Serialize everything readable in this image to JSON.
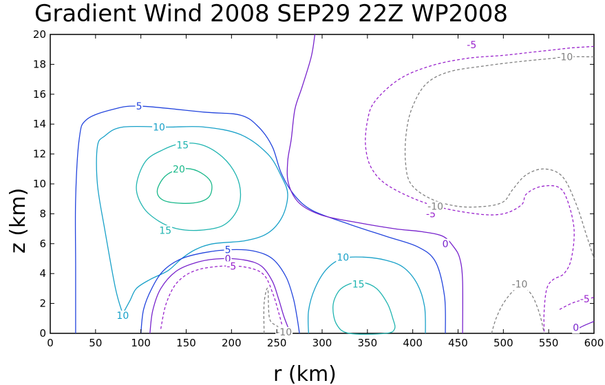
{
  "chart_data": {
    "type": "contour",
    "title": "Gradient Wind 2008 SEP29 22Z  WP2008",
    "xlabel": "r (km)",
    "ylabel": "z (km)",
    "xlim": [
      0,
      600
    ],
    "ylim": [
      0,
      20
    ],
    "xticks": [
      "0",
      "50",
      "100",
      "150",
      "200",
      "250",
      "300",
      "350",
      "400",
      "450",
      "500",
      "550",
      "600"
    ],
    "yticks": [
      "0",
      "2",
      "4",
      "6",
      "8",
      "10",
      "12",
      "14",
      "16",
      "18",
      "20"
    ],
    "colors": {
      "c20": "#19b88a",
      "c15": "#1fb4b0",
      "c10": "#17a0c8",
      "c5": "#2244dd",
      "c0": "#7722cc",
      "cm5": "#9922cc",
      "cm10": "#808080"
    },
    "contours": [
      {
        "level": "20",
        "color": "c20",
        "dash": false,
        "closed": true,
        "points": [
          [
            118,
            9.5
          ],
          [
            125,
            10.4
          ],
          [
            138,
            10.9
          ],
          [
            155,
            11.0
          ],
          [
            170,
            10.6
          ],
          [
            178,
            10.0
          ],
          [
            176,
            9.2
          ],
          [
            165,
            8.8
          ],
          [
            145,
            8.7
          ],
          [
            125,
            8.9
          ]
        ]
      },
      {
        "level": "15",
        "color": "c15",
        "dash": false,
        "closed": true,
        "points": [
          [
            95,
            9.8
          ],
          [
            105,
            11.5
          ],
          [
            125,
            12.3
          ],
          [
            145,
            12.7
          ],
          [
            168,
            12.6
          ],
          [
            190,
            11.8
          ],
          [
            205,
            10.6
          ],
          [
            210,
            9.3
          ],
          [
            205,
            8.1
          ],
          [
            190,
            7.2
          ],
          [
            165,
            6.9
          ],
          [
            140,
            7.0
          ],
          [
            120,
            7.5
          ],
          [
            103,
            8.4
          ]
        ]
      },
      {
        "level": "15",
        "color": "c15",
        "dash": false,
        "closed": true,
        "points": [
          [
            312,
            1.8
          ],
          [
            318,
            2.8
          ],
          [
            330,
            3.3
          ],
          [
            345,
            3.4
          ],
          [
            360,
            3.0
          ],
          [
            372,
            2.0
          ],
          [
            378,
            1.0
          ],
          [
            380,
            0.3
          ],
          [
            370,
            0.0
          ],
          [
            330,
            0.0
          ],
          [
            316,
            0.6
          ]
        ]
      },
      {
        "level": "10",
        "color": "c10",
        "dash": false,
        "closed": false,
        "points": [
          [
            80,
            1.3
          ],
          [
            72,
            3.0
          ],
          [
            60,
            7.0
          ],
          [
            52,
            10.0
          ],
          [
            52,
            12.5
          ],
          [
            60,
            13.2
          ],
          [
            80,
            13.8
          ],
          [
            130,
            13.8
          ],
          [
            170,
            13.8
          ],
          [
            210,
            13.3
          ],
          [
            240,
            12.0
          ],
          [
            255,
            10.5
          ],
          [
            262,
            9.3
          ],
          [
            256,
            7.8
          ],
          [
            240,
            6.7
          ],
          [
            215,
            6.2
          ],
          [
            180,
            6.0
          ],
          [
            160,
            5.6
          ],
          [
            145,
            5.0
          ],
          [
            130,
            4.2
          ],
          [
            110,
            3.6
          ],
          [
            95,
            3.0
          ],
          [
            88,
            2.2
          ],
          [
            80,
            1.3
          ]
        ]
      },
      {
        "level": "10",
        "color": "c10",
        "dash": false,
        "closed": false,
        "points": [
          [
            285,
            0.0
          ],
          [
            285,
            1.5
          ],
          [
            292,
            3.0
          ],
          [
            305,
            4.3
          ],
          [
            322,
            5.0
          ],
          [
            345,
            5.1
          ],
          [
            370,
            4.9
          ],
          [
            390,
            4.4
          ],
          [
            405,
            3.3
          ],
          [
            413,
            1.8
          ],
          [
            414,
            0.0
          ]
        ]
      },
      {
        "level": "5",
        "color": "c5",
        "dash": false,
        "closed": false,
        "points": [
          [
            28,
            0.0
          ],
          [
            28,
            4.5
          ],
          [
            28,
            9.0
          ],
          [
            32,
            13.0
          ],
          [
            40,
            14.3
          ],
          [
            70,
            15.0
          ],
          [
            100,
            15.2
          ],
          [
            170,
            14.8
          ],
          [
            210,
            14.6
          ],
          [
            230,
            13.8
          ],
          [
            245,
            12.5
          ],
          [
            255,
            10.7
          ],
          [
            270,
            9.2
          ],
          [
            290,
            8.2
          ],
          [
            330,
            7.3
          ],
          [
            370,
            6.5
          ],
          [
            405,
            5.8
          ],
          [
            425,
            4.8
          ],
          [
            435,
            2.5
          ],
          [
            436,
            0.0
          ]
        ]
      },
      {
        "level": "5",
        "color": "c5",
        "dash": false,
        "closed": false,
        "points": [
          [
            100,
            0.0
          ],
          [
            103,
            1.6
          ],
          [
            112,
            3.0
          ],
          [
            125,
            4.2
          ],
          [
            145,
            5.0
          ],
          [
            170,
            5.4
          ],
          [
            200,
            5.6
          ],
          [
            225,
            5.5
          ],
          [
            245,
            5.0
          ],
          [
            260,
            3.8
          ],
          [
            268,
            2.4
          ],
          [
            272,
            1.2
          ],
          [
            275,
            0.0
          ]
        ]
      },
      {
        "level": "0",
        "color": "c0",
        "dash": false,
        "closed": false,
        "points": [
          [
            110,
            0.0
          ],
          [
            113,
            1.5
          ],
          [
            122,
            3.0
          ],
          [
            140,
            4.2
          ],
          [
            165,
            4.8
          ],
          [
            190,
            5.0
          ],
          [
            215,
            4.9
          ],
          [
            233,
            4.5
          ],
          [
            245,
            3.5
          ],
          [
            252,
            2.3
          ],
          [
            258,
            1.1
          ],
          [
            265,
            0.0
          ]
        ]
      },
      {
        "level": "0",
        "color": "c0",
        "dash": false,
        "closed": false,
        "points": [
          [
            292,
            20.0
          ],
          [
            288,
            18.5
          ],
          [
            278,
            16.5
          ],
          [
            270,
            15.0
          ],
          [
            266,
            13.0
          ],
          [
            262,
            11.5
          ],
          [
            263,
            10.0
          ],
          [
            275,
            8.7
          ],
          [
            300,
            7.9
          ],
          [
            340,
            7.4
          ],
          [
            380,
            7.0
          ],
          [
            410,
            6.8
          ],
          [
            433,
            6.5
          ],
          [
            445,
            5.8
          ],
          [
            452,
            5.0
          ],
          [
            455,
            3.5
          ],
          [
            455,
            0.0
          ]
        ]
      },
      {
        "level": "0",
        "color": "c0",
        "dash": false,
        "closed": false,
        "points": [
          [
            577,
            0.0
          ],
          [
            585,
            0.4
          ],
          [
            600,
            0.8
          ]
        ]
      },
      {
        "level": "-5",
        "color": "cm5",
        "dash": true,
        "closed": false,
        "points": [
          [
            122,
            0.3
          ],
          [
            128,
            2.0
          ],
          [
            140,
            3.4
          ],
          [
            160,
            4.2
          ],
          [
            190,
            4.5
          ],
          [
            218,
            4.4
          ],
          [
            236,
            3.9
          ],
          [
            246,
            2.6
          ],
          [
            252,
            1.4
          ],
          [
            256,
            0.5
          ]
        ]
      },
      {
        "level": "-5",
        "color": "cm5",
        "dash": true,
        "closed": false,
        "points": [
          [
            600,
            19.2
          ],
          [
            575,
            19.1
          ],
          [
            560,
            19.0
          ],
          [
            530,
            18.8
          ],
          [
            500,
            18.6
          ],
          [
            460,
            18.4
          ],
          [
            420,
            17.9
          ],
          [
            385,
            17.0
          ],
          [
            358,
            15.5
          ],
          [
            350,
            14.2
          ],
          [
            348,
            12.5
          ],
          [
            355,
            11.0
          ],
          [
            375,
            9.8
          ],
          [
            420,
            8.6
          ],
          [
            470,
            8.0
          ],
          [
            500,
            8.0
          ],
          [
            520,
            8.6
          ],
          [
            525,
            9.3
          ],
          [
            540,
            9.8
          ],
          [
            560,
            9.8
          ],
          [
            570,
            9.0
          ],
          [
            578,
            7.0
          ],
          [
            575,
            5.0
          ],
          [
            567,
            4.0
          ],
          [
            555,
            3.6
          ],
          [
            548,
            3.0
          ],
          [
            545,
            1.5
          ],
          [
            545,
            0.0
          ]
        ]
      },
      {
        "level": "-5",
        "color": "cm5",
        "dash": true,
        "closed": false,
        "points": [
          [
            562,
            1.6
          ],
          [
            575,
            2.0
          ],
          [
            585,
            2.2
          ],
          [
            600,
            2.4
          ]
        ]
      },
      {
        "level": "-10",
        "color": "cm10",
        "dash": true,
        "closed": false,
        "points": [
          [
            600,
            18.5
          ],
          [
            575,
            18.5
          ],
          [
            555,
            18.4
          ],
          [
            520,
            18.2
          ],
          [
            480,
            17.9
          ],
          [
            440,
            17.5
          ],
          [
            415,
            16.7
          ],
          [
            400,
            15.2
          ],
          [
            393,
            13.5
          ],
          [
            392,
            11.5
          ],
          [
            398,
            10.0
          ],
          [
            420,
            9.0
          ],
          [
            450,
            8.5
          ],
          [
            480,
            8.5
          ],
          [
            500,
            8.8
          ],
          [
            510,
            9.6
          ],
          [
            525,
            10.6
          ],
          [
            545,
            11.0
          ],
          [
            565,
            10.5
          ],
          [
            580,
            8.7
          ],
          [
            592,
            6.5
          ],
          [
            600,
            5.0
          ]
        ]
      },
      {
        "level": "-10",
        "color": "cm10",
        "dash": true,
        "closed": false,
        "points": [
          [
            487,
            0.0
          ],
          [
            492,
            1.0
          ],
          [
            500,
            2.0
          ],
          [
            512,
            2.9
          ],
          [
            522,
            3.1
          ],
          [
            532,
            2.5
          ],
          [
            540,
            1.3
          ],
          [
            545,
            0.0
          ]
        ]
      },
      {
        "level": "-10",
        "color": "cm10",
        "dash": true,
        "closed": false,
        "points": [
          [
            236,
            0.0
          ],
          [
            236,
            2.0
          ],
          [
            240,
            3.0
          ],
          [
            242,
            1.0
          ],
          [
            250,
            0.5
          ],
          [
            255,
            0.2
          ]
        ]
      }
    ],
    "labels": [
      {
        "text": "20",
        "color": "c20",
        "x": 142,
        "y": 11.0
      },
      {
        "text": "15",
        "color": "c15",
        "x": 146,
        "y": 12.6
      },
      {
        "text": "15",
        "color": "c15",
        "x": 127,
        "y": 6.9
      },
      {
        "text": "15",
        "color": "c15",
        "x": 340,
        "y": 3.3
      },
      {
        "text": "10",
        "color": "c10",
        "x": 120,
        "y": 13.8
      },
      {
        "text": "10",
        "color": "c10",
        "x": 80,
        "y": 1.2
      },
      {
        "text": "10",
        "color": "c10",
        "x": 323,
        "y": 5.1
      },
      {
        "text": "5",
        "color": "c5",
        "x": 98,
        "y": 15.2
      },
      {
        "text": "5",
        "color": "c5",
        "x": 196,
        "y": 5.6
      },
      {
        "text": "0",
        "color": "c0",
        "x": 196,
        "y": 5.0
      },
      {
        "text": "0",
        "color": "c0",
        "x": 436,
        "y": 6.0
      },
      {
        "text": "0",
        "color": "c0",
        "x": 580,
        "y": 0.4
      },
      {
        "text": "-5",
        "color": "cm5",
        "x": 200,
        "y": 4.5
      },
      {
        "text": "-5",
        "color": "cm5",
        "x": 465,
        "y": 19.3
      },
      {
        "text": "-5",
        "color": "cm5",
        "x": 420,
        "y": 8.0
      },
      {
        "text": "-5",
        "color": "cm5",
        "x": 590,
        "y": 2.3
      },
      {
        "text": "-10",
        "color": "cm10",
        "x": 568,
        "y": 18.5
      },
      {
        "text": "-10",
        "color": "cm10",
        "x": 425,
        "y": 8.5
      },
      {
        "text": "-10",
        "color": "cm10",
        "x": 518,
        "y": 3.3
      },
      {
        "text": "-10",
        "color": "cm10",
        "x": 258,
        "y": 0.1
      }
    ]
  }
}
